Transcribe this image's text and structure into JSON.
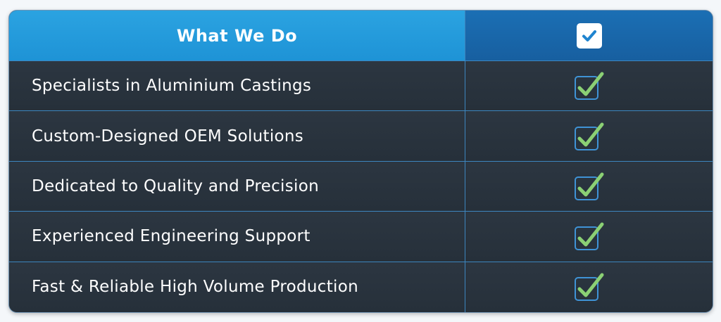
{
  "header": {
    "title": "What We Do",
    "check_icon": "checkbox-checked-icon"
  },
  "rows": [
    {
      "label": "Specialists in Aluminium Castings",
      "checked": true
    },
    {
      "label": "Custom-Designed OEM Solutions",
      "checked": true
    },
    {
      "label": "Dedicated to Quality and Precision",
      "checked": true
    },
    {
      "label": "Experienced Engineering Support",
      "checked": true
    },
    {
      "label": "Fast & Reliable High Volume Production",
      "checked": true
    }
  ],
  "colors": {
    "header_left": "#1e93d6",
    "header_right": "#175fa0",
    "body": "#29323c",
    "check_green": "#8bd074",
    "check_box_border": "#3f93d6"
  }
}
